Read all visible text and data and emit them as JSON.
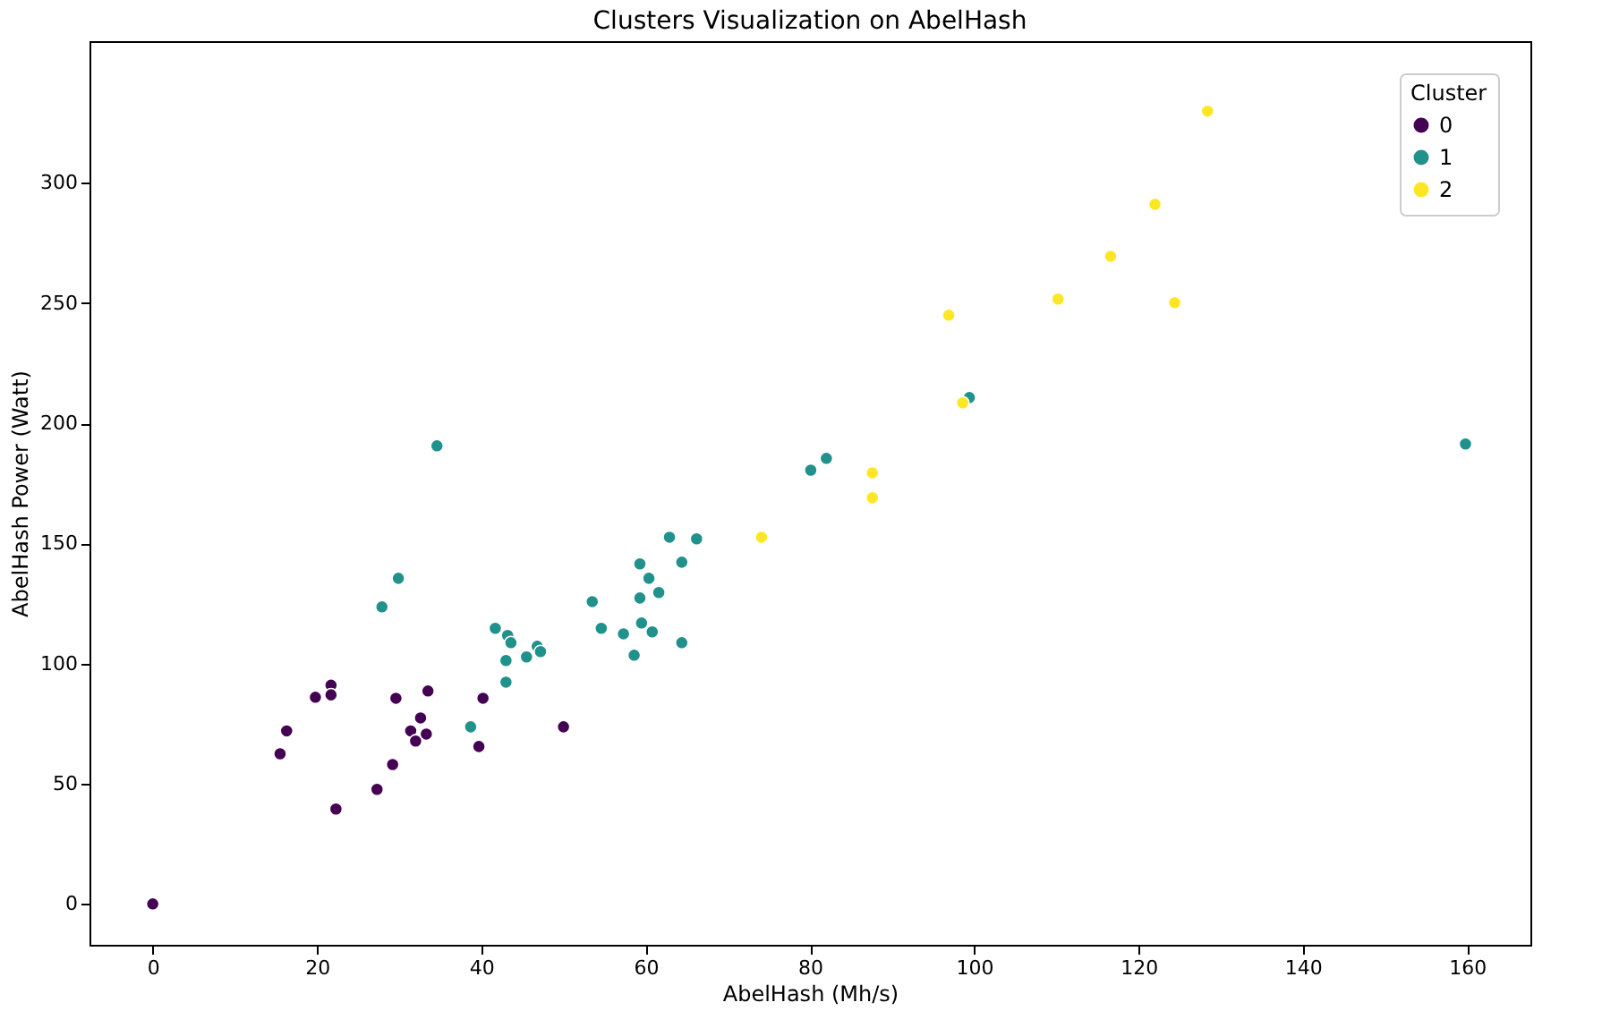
{
  "chart_data": {
    "type": "scatter",
    "title": "Clusters Visualization on AbelHash",
    "xlabel": "AbelHash (Mh/s)",
    "ylabel": "AbelHash Power (Watt)",
    "legend_title": "Cluster",
    "xlim": [
      -7.7,
      167.7
    ],
    "ylim": [
      -17,
      359
    ],
    "xticks": [
      0,
      20,
      40,
      60,
      80,
      100,
      120,
      140,
      160
    ],
    "yticks": [
      0,
      50,
      100,
      150,
      200,
      250,
      300
    ],
    "grid": false,
    "legend": "top right",
    "marker": "circle",
    "series": [
      {
        "name": "0",
        "color": "#440154",
        "x": [
          0,
          15.5,
          16.3,
          19.8,
          21.7,
          21.7,
          22.3,
          27.3,
          29.2,
          29.6,
          31.4,
          32.6,
          32.0,
          33.3,
          33.5,
          39.7,
          40.2,
          50
        ],
        "values": [
          0,
          62.5,
          72,
          86,
          91,
          87,
          39.5,
          47.7,
          58,
          85.6,
          72,
          77.4,
          67.8,
          70.7,
          88.6,
          65.5,
          85.6,
          73.7
        ]
      },
      {
        "name": "1",
        "color": "#21918c",
        "x": [
          34.6,
          29.9,
          27.9,
          38.7,
          41.7,
          43.2,
          43.6,
          43.0,
          43.0,
          45.5,
          46.8,
          47.2,
          53.5,
          54.6,
          57.3,
          58.6,
          59.3,
          59.3,
          59.5,
          60.4,
          60.8,
          61.6,
          62.9,
          64.4,
          64.4,
          66.2,
          80.1,
          82.0,
          99.4,
          159.8
        ],
        "values": [
          190.6,
          135.5,
          123.6,
          73.7,
          114.7,
          111.7,
          108.7,
          101.3,
          92.3,
          102.8,
          107.2,
          105,
          125.8,
          114.7,
          112.4,
          103.5,
          141.5,
          127.3,
          116.9,
          135.5,
          113.2,
          129.6,
          152.6,
          142.2,
          108.7,
          151.9,
          180.5,
          185.4,
          210.7,
          191.4
        ]
      },
      {
        "name": "2",
        "color": "#fde725",
        "x": [
          74.1,
          87.6,
          87.6,
          96.9,
          98.6,
          110.2,
          116.6,
          122,
          124.4,
          128.4
        ],
        "values": [
          152.6,
          179.4,
          169,
          245,
          208.5,
          251.7,
          269.5,
          291.1,
          250.2,
          329.9
        ]
      }
    ]
  }
}
